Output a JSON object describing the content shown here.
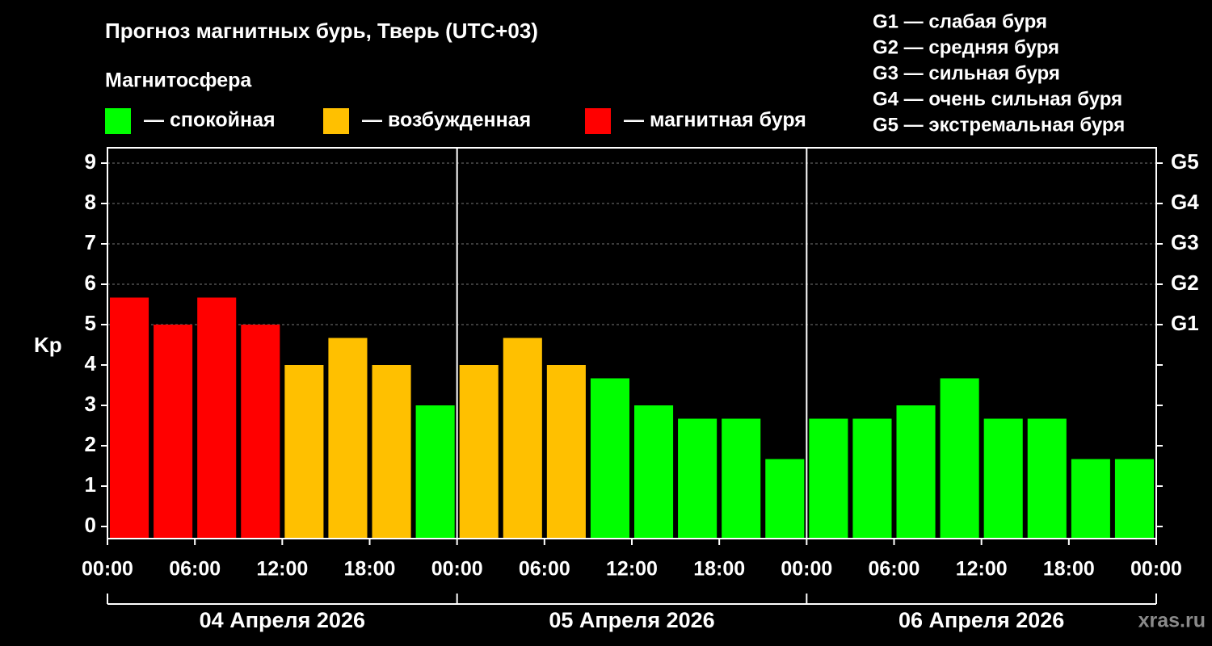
{
  "chart_data": {
    "type": "bar",
    "title": "Прогноз магнитных бурь, Тверь (UTC+03)",
    "legend_title": "Магнитосфера",
    "legend": [
      {
        "name": "— спокойная",
        "color": "#00ff00"
      },
      {
        "name": "— возбужденная",
        "color": "#ffc000"
      },
      {
        "name": "— магнитная буря",
        "color": "#ff0000"
      }
    ],
    "g_scale": [
      "G1 — слабая буря",
      "G2 — средняя буря",
      "G3 — сильная буря",
      "G4 — очень сильная буря",
      "G5 — экстремальная буря"
    ],
    "ylabel": "Kp",
    "values": [
      5.67,
      5,
      5.67,
      5,
      4,
      4.67,
      4,
      3,
      4,
      4.67,
      4,
      3.67,
      3,
      2.67,
      2.67,
      1.67,
      2.67,
      2.67,
      3,
      3.67,
      2.67,
      2.67,
      1.67,
      1.67
    ],
    "colors": [
      "#ff0000",
      "#ff0000",
      "#ff0000",
      "#ff0000",
      "#ffc000",
      "#ffc000",
      "#ffc000",
      "#00ff00",
      "#ffc000",
      "#ffc000",
      "#ffc000",
      "#00ff00",
      "#00ff00",
      "#00ff00",
      "#00ff00",
      "#00ff00",
      "#00ff00",
      "#00ff00",
      "#00ff00",
      "#00ff00",
      "#00ff00",
      "#00ff00",
      "#00ff00",
      "#00ff00"
    ],
    "xticks": [
      "00:00",
      "06:00",
      "12:00",
      "18:00",
      "00:00",
      "06:00",
      "12:00",
      "18:00",
      "00:00",
      "06:00",
      "12:00",
      "18:00",
      "00:00"
    ],
    "days": [
      "04 Апреля 2026",
      "05 Апреля 2026",
      "06 Апреля 2026"
    ],
    "ylim": [
      -0.3,
      9.38
    ],
    "yticks": [
      0,
      1,
      2,
      3,
      4,
      5,
      6,
      7,
      8,
      9
    ],
    "y2lim": [
      -0.3,
      9.38
    ],
    "y2ticks": [
      {
        "value": 5,
        "label": "G1"
      },
      {
        "value": 6,
        "label": "G2"
      },
      {
        "value": 7,
        "label": "G3"
      },
      {
        "value": 8,
        "label": "G4"
      },
      {
        "value": 9,
        "label": "G5"
      }
    ],
    "grid": true,
    "watermark": "xras.ru"
  }
}
